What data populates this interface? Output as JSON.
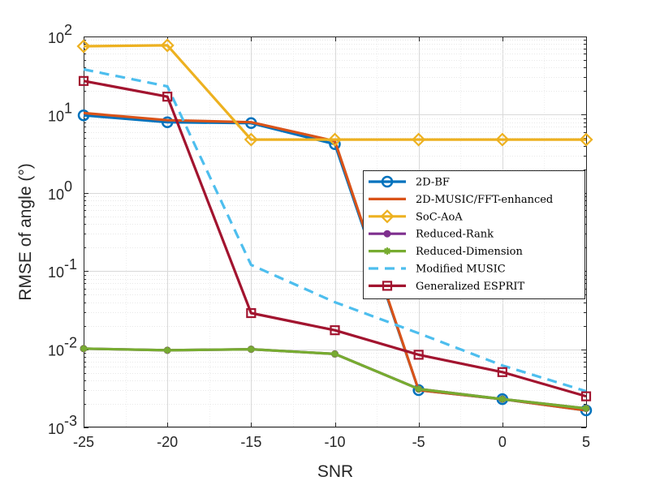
{
  "chart_data": {
    "type": "line",
    "title": "",
    "xlabel": "SNR",
    "ylabel": "RMSE of angle (°)",
    "yscale": "log",
    "xlim": [
      -25,
      5
    ],
    "ylim": [
      0.001,
      100
    ],
    "grid": true,
    "legend_position": "right",
    "x": [
      -25,
      -20,
      -15,
      -10,
      -5,
      0,
      5
    ],
    "x_ticks": [
      "-25",
      "-20",
      "-15",
      "-10",
      "-5",
      "0",
      "5"
    ],
    "y_ticks": [
      {
        "value": 0.001,
        "base": "10",
        "exp": "-3"
      },
      {
        "value": 0.01,
        "base": "10",
        "exp": "-2"
      },
      {
        "value": 0.1,
        "base": "10",
        "exp": "-1"
      },
      {
        "value": 1,
        "base": "10",
        "exp": "0"
      },
      {
        "value": 10,
        "base": "10",
        "exp": "1"
      },
      {
        "value": 100,
        "base": "10",
        "exp": "2"
      }
    ],
    "series": [
      {
        "name": "2D-BF",
        "color": "#0072BD",
        "marker": "circle",
        "dash": "solid",
        "values": [
          9.8,
          8.0,
          7.8,
          4.2,
          0.003,
          0.0023,
          0.00165
        ]
      },
      {
        "name": "2D-MUSIC/FFT-enhanced",
        "color": "#D95319",
        "marker": "none",
        "dash": "solid",
        "values": [
          10.5,
          8.5,
          8.0,
          4.6,
          0.003,
          0.0023,
          0.00165
        ]
      },
      {
        "name": "SoC-AoA",
        "color": "#EDB120",
        "marker": "diamond",
        "dash": "solid",
        "values": [
          75,
          77,
          4.8,
          4.8,
          4.8,
          4.8,
          4.8
        ]
      },
      {
        "name": "Reduced-Rank",
        "color": "#7E2F8E",
        "marker": "dot",
        "dash": "solid",
        "values": [
          0.0102,
          0.0097,
          0.01,
          0.0087,
          0.0031,
          0.0023,
          0.00175
        ]
      },
      {
        "name": "Reduced-Dimension",
        "color": "#77AC30",
        "marker": "star",
        "dash": "solid",
        "values": [
          0.0102,
          0.0097,
          0.01,
          0.0087,
          0.0031,
          0.0023,
          0.00175
        ]
      },
      {
        "name": "Modified MUSIC",
        "color": "#4DBEEE",
        "marker": "none",
        "dash": "dashed",
        "values": [
          38,
          23,
          0.12,
          0.04,
          0.016,
          0.0062,
          0.0029
        ]
      },
      {
        "name": "Generalized ESPRIT",
        "color": "#A2142F",
        "marker": "square",
        "dash": "solid",
        "values": [
          27,
          17,
          0.029,
          0.0175,
          0.0085,
          0.0051,
          0.0025
        ]
      }
    ]
  }
}
